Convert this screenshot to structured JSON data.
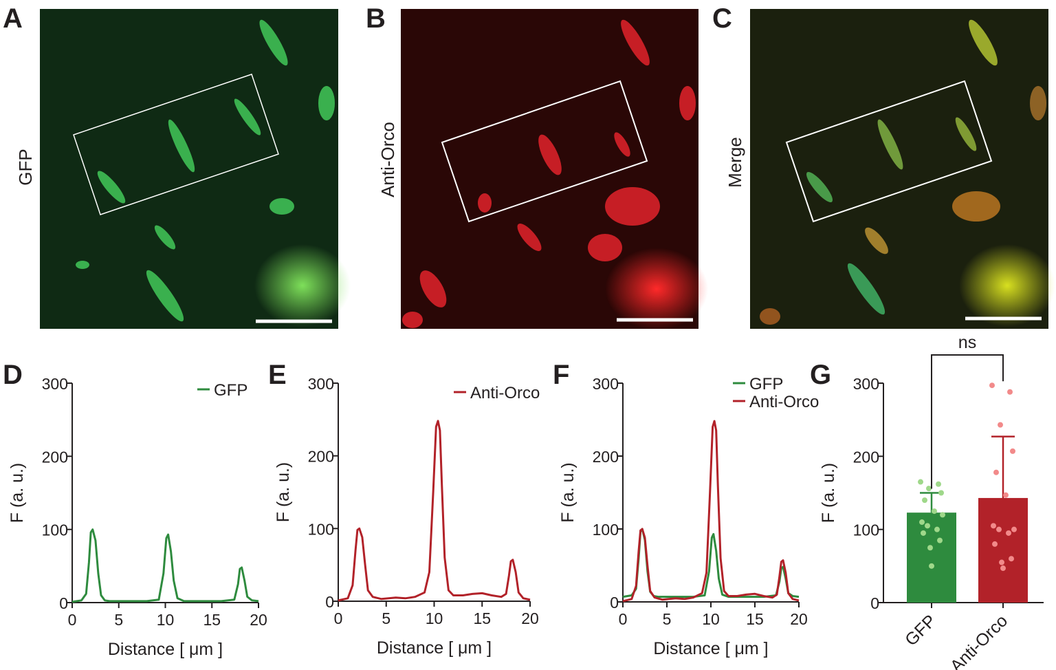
{
  "panels": {
    "A": {
      "letter": "A",
      "side_label": "GFP"
    },
    "B": {
      "letter": "B",
      "side_label": "Anti-Orco"
    },
    "C": {
      "letter": "C",
      "side_label": "Merge"
    },
    "D": {
      "letter": "D"
    },
    "E": {
      "letter": "E"
    },
    "F": {
      "letter": "F"
    },
    "G": {
      "letter": "G"
    }
  },
  "colors": {
    "gfp": "#2e8b3e",
    "orco": "#b22229",
    "gfp_dots": "#9fd88a",
    "orco_dots": "#f28a8a"
  },
  "chart_data": [
    {
      "panel": "D",
      "type": "line",
      "xlabel": "Distance [ μm ]",
      "ylabel": "F (a. u.)",
      "xlim": [
        0,
        20
      ],
      "ylim": [
        0,
        300
      ],
      "xticks": [
        0,
        5,
        10,
        15,
        20
      ],
      "yticks": [
        0,
        100,
        200,
        300
      ],
      "legend_position": "top-right",
      "series": [
        {
          "name": "GFP",
          "color": "#2e8b3e",
          "x": [
            0,
            1.0,
            1.5,
            1.8,
            2.0,
            2.2,
            2.5,
            2.8,
            3.1,
            3.5,
            4,
            6,
            8,
            9.3,
            9.8,
            10.1,
            10.3,
            10.6,
            10.9,
            11.3,
            12,
            14,
            16,
            17.4,
            17.8,
            18.0,
            18.2,
            18.5,
            18.8,
            19.3,
            20
          ],
          "y": [
            1,
            3,
            12,
            55,
            96,
            100,
            85,
            40,
            10,
            3,
            2,
            2,
            2,
            4,
            40,
            88,
            93,
            70,
            30,
            6,
            2,
            2,
            2,
            4,
            25,
            46,
            48,
            30,
            8,
            3,
            2
          ]
        }
      ]
    },
    {
      "panel": "E",
      "type": "line",
      "xlabel": "Distance [ μm ]",
      "ylabel": "F (a. u.)",
      "xlim": [
        0,
        20
      ],
      "ylim": [
        0,
        300
      ],
      "xticks": [
        0,
        5,
        10,
        15,
        20
      ],
      "yticks": [
        0,
        100,
        200,
        300
      ],
      "legend_position": "top-right",
      "series": [
        {
          "name": "Anti-Orco",
          "color": "#b22229",
          "x": [
            0,
            1.0,
            1.5,
            1.8,
            2.0,
            2.2,
            2.5,
            2.8,
            3.1,
            3.6,
            4.5,
            6,
            7,
            8,
            9.0,
            9.5,
            9.9,
            10.2,
            10.4,
            10.6,
            10.8,
            11.1,
            11.5,
            12,
            13,
            14,
            15,
            16,
            17,
            17.5,
            17.8,
            18.0,
            18.2,
            18.5,
            18.8,
            19.3,
            20
          ],
          "y": [
            1,
            4,
            22,
            70,
            98,
            100,
            88,
            50,
            15,
            6,
            3,
            5,
            4,
            6,
            12,
            40,
            150,
            240,
            248,
            235,
            160,
            60,
            15,
            8,
            8,
            10,
            11,
            8,
            6,
            10,
            35,
            55,
            57,
            40,
            12,
            4,
            2
          ]
        }
      ]
    },
    {
      "panel": "F",
      "type": "line",
      "xlabel": "Distance [ μm ]",
      "ylabel": "F (a. u.)",
      "xlim": [
        0,
        20
      ],
      "ylim": [
        0,
        300
      ],
      "xticks": [
        0,
        5,
        10,
        15,
        20
      ],
      "yticks": [
        0,
        100,
        200,
        300
      ],
      "legend_position": "top-right",
      "series": [
        {
          "name": "GFP",
          "color": "#2e8b3e",
          "x": [
            0,
            1.0,
            1.5,
            1.8,
            2.0,
            2.2,
            2.5,
            2.8,
            3.1,
            3.5,
            4,
            6,
            8,
            9.3,
            9.8,
            10.1,
            10.3,
            10.6,
            10.9,
            11.3,
            12,
            14,
            16,
            17.4,
            17.8,
            18.0,
            18.2,
            18.5,
            18.8,
            19.3,
            20
          ],
          "y": [
            7,
            9,
            18,
            60,
            96,
            100,
            85,
            42,
            14,
            8,
            7,
            7,
            7,
            9,
            42,
            88,
            93,
            70,
            32,
            10,
            7,
            7,
            7,
            9,
            28,
            46,
            48,
            32,
            12,
            8,
            7
          ]
        },
        {
          "name": "Anti-Orco",
          "color": "#b22229",
          "x": [
            0,
            1.0,
            1.5,
            1.8,
            2.0,
            2.2,
            2.5,
            2.8,
            3.1,
            3.6,
            4.5,
            6,
            7,
            8,
            9.0,
            9.5,
            9.9,
            10.2,
            10.4,
            10.6,
            10.8,
            11.1,
            11.5,
            12,
            13,
            14,
            15,
            16,
            17,
            17.5,
            17.8,
            18.0,
            18.2,
            18.5,
            18.8,
            19.3,
            20
          ],
          "y": [
            1,
            4,
            22,
            70,
            98,
            100,
            88,
            50,
            15,
            6,
            3,
            5,
            4,
            6,
            12,
            40,
            150,
            240,
            248,
            235,
            160,
            60,
            15,
            8,
            8,
            10,
            11,
            8,
            6,
            10,
            35,
            55,
            57,
            40,
            12,
            4,
            2
          ]
        }
      ]
    },
    {
      "panel": "G",
      "type": "bar",
      "ylabel": "F (a. u.)",
      "ylim": [
        0,
        300
      ],
      "yticks": [
        0,
        100,
        200,
        300
      ],
      "categories": [
        "GFP",
        "Anti-Orco"
      ],
      "values": [
        123,
        143
      ],
      "error": [
        27,
        84
      ],
      "colors": [
        "#2e8b3e",
        "#b22229"
      ],
      "points": [
        [
          165,
          162,
          156,
          150,
          140,
          125,
          110,
          120,
          105,
          100,
          95,
          85,
          75,
          50
        ],
        [
          297,
          288,
          243,
          207,
          178,
          147,
          105,
          100,
          100,
          95,
          80,
          60,
          55,
          47
        ]
      ],
      "significance": "ns"
    }
  ]
}
